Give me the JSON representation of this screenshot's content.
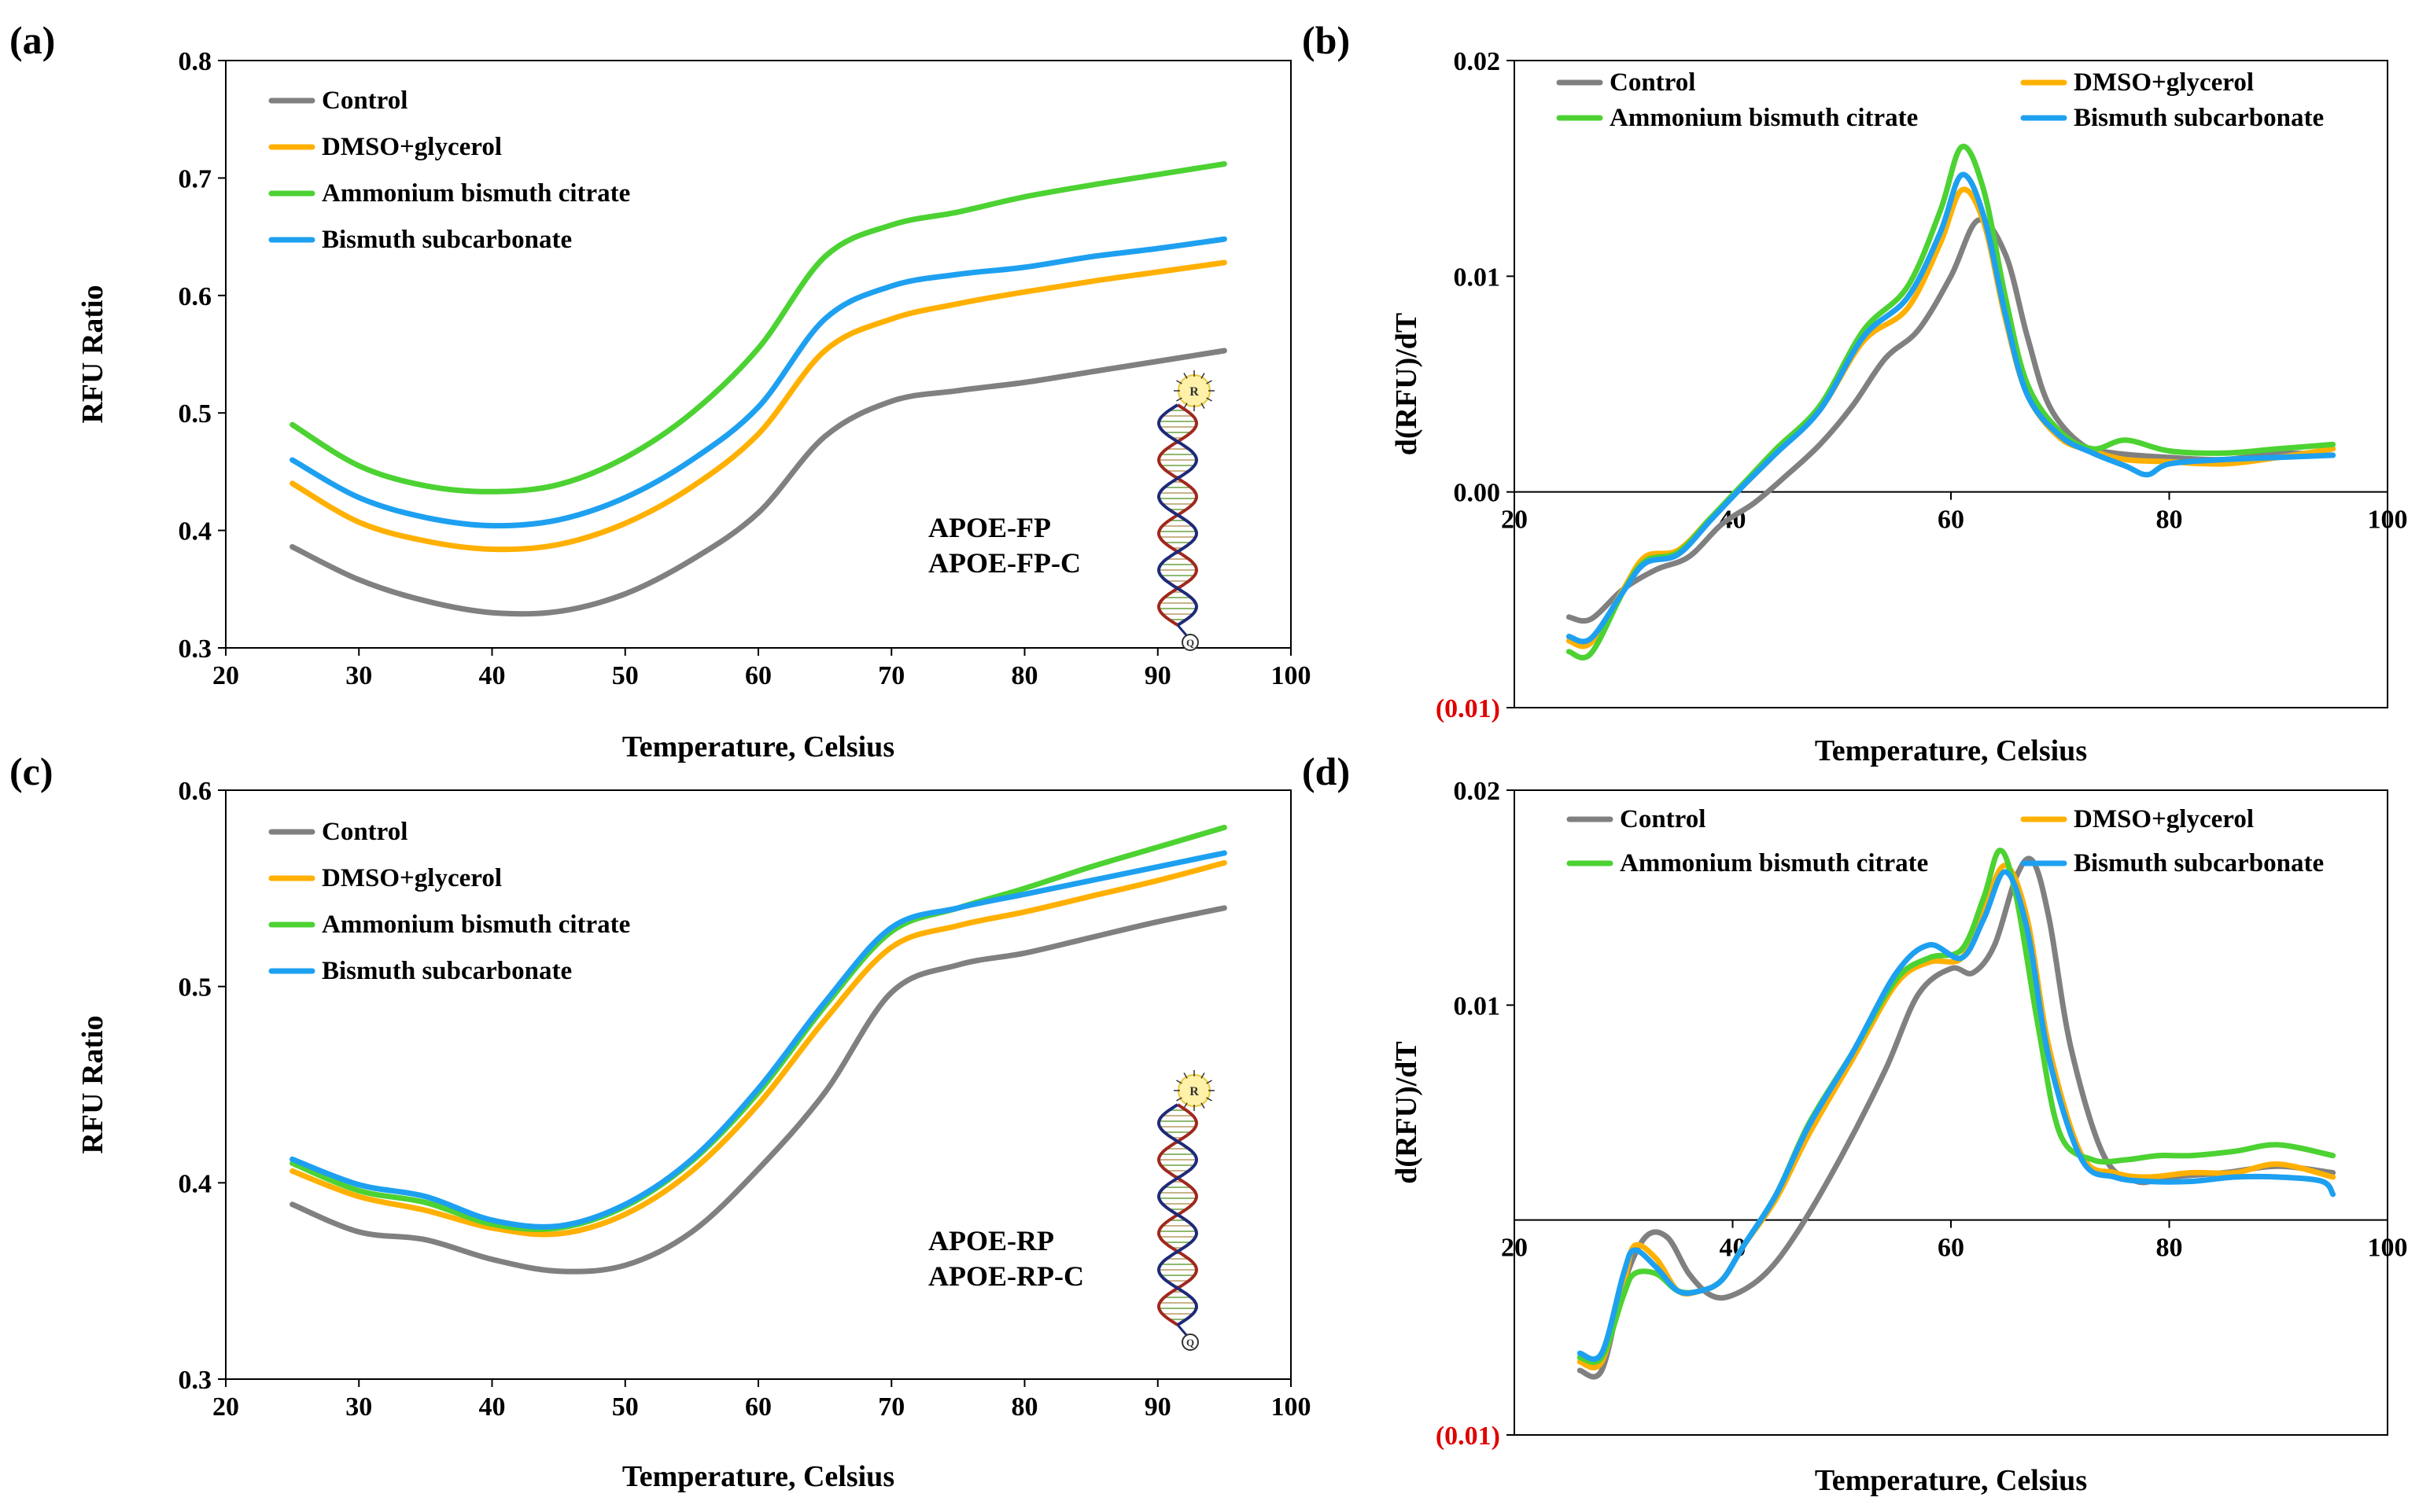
{
  "chart_data": [
    {
      "id": "a",
      "panel_label": "(a)",
      "type": "line",
      "xlabel": "Temperature, Celsius",
      "ylabel": "RFU Ratio",
      "xlim": [
        20,
        100
      ],
      "ylim": [
        0.3,
        0.8
      ],
      "x_ticks": [
        20,
        30,
        40,
        50,
        60,
        70,
        80,
        90,
        100
      ],
      "y_ticks": [
        0.3,
        0.4,
        0.5,
        0.6,
        0.7,
        0.8
      ],
      "x_tick_labels": [
        "20",
        "30",
        "40",
        "50",
        "60",
        "70",
        "80",
        "90",
        "100"
      ],
      "y_tick_labels": [
        "0.3",
        "0.4",
        "0.5",
        "0.6",
        "0.7",
        "0.8"
      ],
      "legend_layout": "one-column-top-left",
      "annotation": [
        "APOE-FP",
        "APOE-FP-C"
      ],
      "series": [
        {
          "name": "Control",
          "color": "#808080",
          "x": [
            25,
            30,
            35,
            40,
            45,
            50,
            55,
            60,
            65,
            70,
            75,
            80,
            85,
            90,
            95
          ],
          "y": [
            0.386,
            0.358,
            0.34,
            0.33,
            0.331,
            0.346,
            0.375,
            0.415,
            0.48,
            0.51,
            0.519,
            0.526,
            0.535,
            0.544,
            0.553
          ]
        },
        {
          "name": "DMSO+glycerol",
          "color": "#FFB000",
          "x": [
            25,
            30,
            35,
            40,
            45,
            50,
            55,
            60,
            65,
            70,
            75,
            80,
            85,
            90,
            95
          ],
          "y": [
            0.44,
            0.407,
            0.391,
            0.384,
            0.388,
            0.406,
            0.437,
            0.482,
            0.553,
            0.58,
            0.593,
            0.603,
            0.612,
            0.62,
            0.628
          ]
        },
        {
          "name": "Ammonium bismuth citrate",
          "color": "#4CD232",
          "x": [
            25,
            30,
            35,
            40,
            45,
            50,
            55,
            60,
            65,
            70,
            75,
            80,
            85,
            90,
            95
          ],
          "y": [
            0.49,
            0.455,
            0.438,
            0.433,
            0.439,
            0.462,
            0.5,
            0.555,
            0.633,
            0.66,
            0.671,
            0.684,
            0.694,
            0.703,
            0.712
          ]
        },
        {
          "name": "Bismuth subcarbonate",
          "color": "#1EA0F0",
          "x": [
            25,
            30,
            35,
            40,
            45,
            50,
            55,
            60,
            65,
            70,
            75,
            80,
            85,
            90,
            95
          ],
          "y": [
            0.46,
            0.428,
            0.411,
            0.404,
            0.409,
            0.428,
            0.46,
            0.505,
            0.58,
            0.608,
            0.618,
            0.624,
            0.633,
            0.64,
            0.648
          ]
        }
      ]
    },
    {
      "id": "b",
      "panel_label": "(b)",
      "type": "line",
      "xlabel": "Temperature, Celsius",
      "ylabel": "d(RFU)/dT",
      "xlim": [
        20,
        100
      ],
      "ylim": [
        -0.01,
        0.02
      ],
      "x_ticks": [
        20,
        40,
        60,
        80,
        100
      ],
      "y_ticks": [
        -0.01,
        0.0,
        0.01,
        0.02
      ],
      "x_tick_labels": [
        "20",
        "40",
        "60",
        "80",
        "100"
      ],
      "y_tick_labels": [
        "(0.01)",
        "0.00",
        "0.01",
        "0.02"
      ],
      "negative_tick_color": "#E00000",
      "legend_layout": "two-column-top",
      "series": [
        {
          "name": "Control",
          "color": "#808080",
          "x": [
            25,
            27,
            30,
            33,
            36,
            39,
            42,
            45,
            48,
            51,
            54,
            57,
            60,
            62.5,
            65,
            67,
            69,
            72,
            75,
            80,
            85,
            90,
            95
          ],
          "y": [
            -0.0058,
            -0.0059,
            -0.0045,
            -0.0036,
            -0.003,
            -0.0015,
            -0.0005,
            0.0008,
            0.0022,
            0.004,
            0.0062,
            0.0075,
            0.01,
            0.0126,
            0.011,
            0.0072,
            0.004,
            0.0022,
            0.0018,
            0.0016,
            0.0015,
            0.0018,
            0.0017
          ]
        },
        {
          "name": "DMSO+glycerol",
          "color": "#FFB000",
          "x": [
            25,
            27,
            30,
            32,
            35,
            38,
            41,
            44,
            48,
            52,
            56,
            59,
            61,
            63,
            65,
            67,
            70,
            73,
            76,
            80,
            85,
            90,
            95
          ],
          "y": [
            -0.0069,
            -0.007,
            -0.0045,
            -0.003,
            -0.0027,
            -0.0012,
            0.0003,
            0.0018,
            0.0038,
            0.007,
            0.0085,
            0.0115,
            0.014,
            0.0125,
            0.008,
            0.0045,
            0.0025,
            0.0019,
            0.0015,
            0.0014,
            0.0013,
            0.0016,
            0.002
          ]
        },
        {
          "name": "Ammonium bismuth citrate",
          "color": "#4CD232",
          "x": [
            25,
            27,
            30,
            32,
            35,
            38,
            41,
            44,
            48,
            52,
            56,
            59,
            61,
            63,
            65,
            67,
            70,
            73,
            76,
            80,
            85,
            90,
            95
          ],
          "y": [
            -0.0074,
            -0.0075,
            -0.0046,
            -0.0032,
            -0.0028,
            -0.0012,
            0.0004,
            0.002,
            0.004,
            0.0075,
            0.0095,
            0.013,
            0.016,
            0.014,
            0.009,
            0.005,
            0.0028,
            0.002,
            0.0024,
            0.0019,
            0.0018,
            0.002,
            0.0022
          ]
        },
        {
          "name": "Bismuth subcarbonate",
          "color": "#1EA0F0",
          "x": [
            25,
            27,
            30,
            32,
            35,
            38,
            41,
            44,
            48,
            52,
            56,
            59,
            61,
            63,
            65,
            67,
            70,
            73,
            76,
            78,
            80,
            85,
            90,
            95
          ],
          "y": [
            -0.0067,
            -0.0068,
            -0.0046,
            -0.0033,
            -0.0029,
            -0.0013,
            0.0003,
            0.0018,
            0.0038,
            0.0072,
            0.009,
            0.012,
            0.0147,
            0.0128,
            0.0082,
            0.0045,
            0.0026,
            0.0018,
            0.0012,
            0.0008,
            0.0013,
            0.0015,
            0.0016,
            0.0017
          ]
        }
      ]
    },
    {
      "id": "c",
      "panel_label": "(c)",
      "type": "line",
      "xlabel": "Temperature, Celsius",
      "ylabel": "RFU Ratio",
      "xlim": [
        20,
        100
      ],
      "ylim": [
        0.3,
        0.6
      ],
      "x_ticks": [
        20,
        30,
        40,
        50,
        60,
        70,
        80,
        90,
        100
      ],
      "y_ticks": [
        0.3,
        0.4,
        0.5,
        0.6
      ],
      "x_tick_labels": [
        "20",
        "30",
        "40",
        "50",
        "60",
        "70",
        "80",
        "90",
        "100"
      ],
      "y_tick_labels": [
        "0.3",
        "0.4",
        "0.5",
        "0.6"
      ],
      "legend_layout": "one-column-top-left",
      "annotation": [
        "APOE-RP",
        "APOE-RP-C"
      ],
      "series": [
        {
          "name": "Control",
          "color": "#808080",
          "x": [
            25,
            30,
            35,
            40,
            45,
            50,
            55,
            60,
            65,
            70,
            75,
            80,
            85,
            90,
            95
          ],
          "y": [
            0.389,
            0.375,
            0.371,
            0.361,
            0.355,
            0.358,
            0.375,
            0.407,
            0.446,
            0.497,
            0.511,
            0.517,
            0.525,
            0.533,
            0.54
          ]
        },
        {
          "name": "DMSO+glycerol",
          "color": "#FFB000",
          "x": [
            25,
            30,
            35,
            40,
            45,
            50,
            55,
            60,
            65,
            70,
            75,
            80,
            85,
            90,
            95
          ],
          "y": [
            0.406,
            0.393,
            0.386,
            0.377,
            0.374,
            0.384,
            0.406,
            0.44,
            0.483,
            0.52,
            0.531,
            0.538,
            0.546,
            0.554,
            0.563
          ]
        },
        {
          "name": "Ammonium bismuth citrate",
          "color": "#4CD232",
          "x": [
            25,
            30,
            35,
            40,
            45,
            50,
            55,
            60,
            65,
            70,
            75,
            80,
            85,
            90,
            95
          ],
          "y": [
            0.41,
            0.396,
            0.39,
            0.379,
            0.377,
            0.388,
            0.411,
            0.446,
            0.49,
            0.528,
            0.54,
            0.55,
            0.561,
            0.571,
            0.581
          ]
        },
        {
          "name": "Bismuth subcarbonate",
          "color": "#1EA0F0",
          "x": [
            25,
            30,
            35,
            40,
            45,
            50,
            55,
            60,
            65,
            70,
            75,
            80,
            85,
            90,
            95
          ],
          "y": [
            0.412,
            0.399,
            0.393,
            0.381,
            0.378,
            0.389,
            0.412,
            0.448,
            0.492,
            0.53,
            0.54,
            0.547,
            0.554,
            0.561,
            0.568
          ]
        }
      ]
    },
    {
      "id": "d",
      "panel_label": "(d)",
      "type": "line",
      "xlabel": "Temperature, Celsius",
      "ylabel": "d(RFU)/dT",
      "xlim": [
        20,
        100
      ],
      "ylim": [
        -0.01,
        0.02
      ],
      "x_ticks": [
        20,
        40,
        60,
        80,
        100
      ],
      "y_ticks": [
        -0.01,
        0.01,
        0.02
      ],
      "x_tick_labels": [
        "20",
        "40",
        "60",
        "80",
        "100"
      ],
      "y_tick_labels": [
        "(0.01)",
        "0.01",
        "0.02"
      ],
      "negative_tick_color": "#E00000",
      "x_axis_at_y": 0.0,
      "legend_layout": "two-column-top",
      "series": [
        {
          "name": "Control",
          "color": "#808080",
          "x": [
            26,
            28,
            30,
            32,
            34,
            36,
            38,
            40,
            43,
            46,
            50,
            54,
            57,
            60,
            62,
            64,
            66,
            67.5,
            69,
            71,
            74,
            77,
            80,
            85,
            90,
            95
          ],
          "y": [
            -0.007,
            -0.007,
            -0.003,
            -0.0008,
            -0.0008,
            -0.0025,
            -0.0035,
            -0.0035,
            -0.0025,
            -0.0005,
            0.003,
            0.007,
            0.0105,
            0.0117,
            0.0115,
            0.0128,
            0.016,
            0.0167,
            0.014,
            0.008,
            0.003,
            0.0018,
            0.002,
            0.0022,
            0.0025,
            0.0022
          ]
        },
        {
          "name": "DMSO+glycerol",
          "color": "#FFB000",
          "x": [
            26,
            28,
            30,
            31,
            33,
            35,
            37,
            39,
            41,
            44,
            47,
            51,
            55,
            58,
            61,
            63,
            65,
            67,
            69,
            72,
            75,
            78,
            82,
            86,
            90,
            95
          ],
          "y": [
            -0.0066,
            -0.0066,
            -0.003,
            -0.0012,
            -0.0018,
            -0.0033,
            -0.0033,
            -0.0028,
            -0.0012,
            0.001,
            0.004,
            0.0075,
            0.011,
            0.012,
            0.0122,
            0.0145,
            0.0165,
            0.014,
            0.008,
            0.003,
            0.0022,
            0.002,
            0.0022,
            0.0022,
            0.0026,
            0.002
          ]
        },
        {
          "name": "Ammonium bismuth citrate",
          "color": "#4CD232",
          "x": [
            26,
            28,
            30,
            31,
            33,
            35,
            37,
            39,
            41,
            44,
            47,
            51,
            55,
            58,
            61,
            63,
            64.5,
            66,
            68,
            70,
            73,
            76,
            79,
            82,
            86,
            90,
            95
          ],
          "y": [
            -0.0064,
            -0.0064,
            -0.0035,
            -0.0025,
            -0.0025,
            -0.0033,
            -0.0033,
            -0.0028,
            -0.0012,
            0.0012,
            0.0045,
            0.0078,
            0.0112,
            0.0122,
            0.0126,
            0.015,
            0.0172,
            0.015,
            0.009,
            0.004,
            0.0028,
            0.0028,
            0.003,
            0.003,
            0.0032,
            0.0035,
            0.003
          ]
        },
        {
          "name": "Bismuth subcarbonate",
          "color": "#1EA0F0",
          "x": [
            26,
            28,
            30,
            31,
            33,
            35,
            37,
            39,
            41,
            44,
            47,
            51,
            55,
            58,
            61,
            63,
            65,
            67,
            69,
            72,
            75,
            78,
            82,
            86,
            90,
            94,
            95
          ],
          "y": [
            -0.0062,
            -0.0062,
            -0.0025,
            -0.0014,
            -0.0022,
            -0.0033,
            -0.0033,
            -0.0028,
            -0.0012,
            0.0012,
            0.0044,
            0.0078,
            0.0115,
            0.0128,
            0.0122,
            0.014,
            0.0162,
            0.0135,
            0.0075,
            0.0028,
            0.002,
            0.0018,
            0.0018,
            0.002,
            0.002,
            0.0018,
            0.0012
          ]
        }
      ]
    }
  ]
}
